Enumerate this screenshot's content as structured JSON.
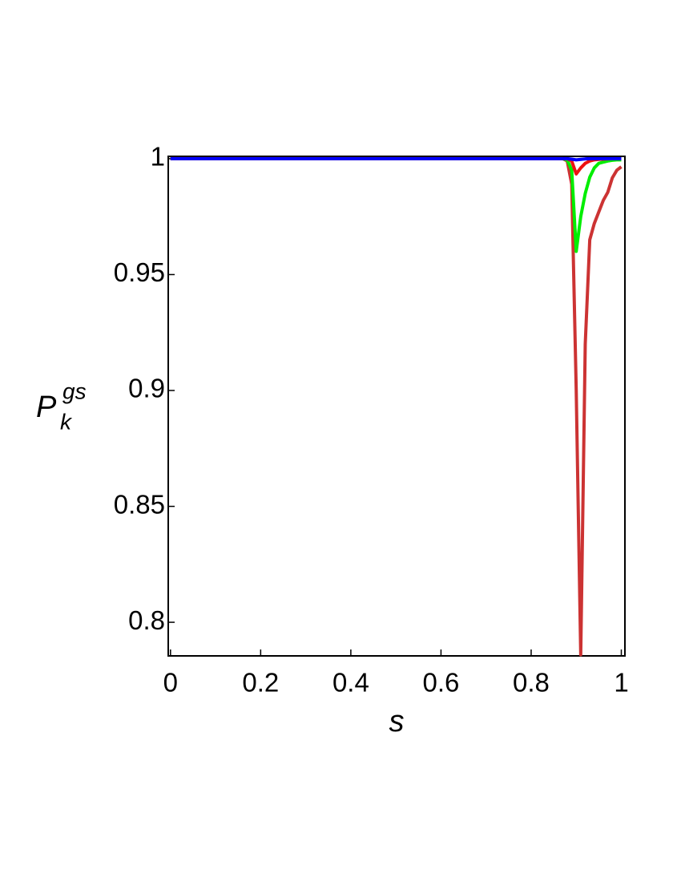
{
  "chart_data": {
    "type": "line",
    "x_label": "s",
    "y_label": {
      "base": "P",
      "sub": "k",
      "sup": "gs"
    },
    "x": [
      0,
      0.5,
      0.85,
      0.87,
      0.88,
      0.89,
      0.9,
      0.91,
      0.92,
      0.93,
      0.94,
      0.95,
      0.96,
      0.97,
      0.98,
      0.99,
      1
    ],
    "series": [
      {
        "color": "#cc3333",
        "values": [
          1,
          1,
          1,
          1,
          0.999,
          0.989,
          0.9,
          0.786,
          0.92,
          0.965,
          0.972,
          0.977,
          0.982,
          0.9855,
          0.9917,
          0.995,
          0.9965
        ]
      },
      {
        "color": "#00ee00",
        "values": [
          1,
          1,
          1,
          1,
          0.9995,
          0.995,
          0.96,
          0.975,
          0.985,
          0.992,
          0.996,
          0.998,
          0.9985,
          0.999,
          0.9993,
          0.9995,
          0.9995
        ]
      },
      {
        "color": "#ee1111",
        "values": [
          1,
          1,
          1,
          1,
          1,
          0.999,
          0.9934,
          0.996,
          0.998,
          0.999,
          0.9995,
          0.9997,
          0.9998,
          0.9999,
          1,
          1,
          1
        ]
      },
      {
        "color": "#0000ff",
        "values": [
          1,
          1,
          1,
          1,
          1,
          0.9998,
          0.9995,
          0.9997,
          0.9999,
          1,
          1,
          1,
          1,
          1,
          1,
          1,
          1
        ]
      }
    ],
    "xlim": [
      -0.005,
      1.008
    ],
    "ylim": [
      0.7855,
      1.001
    ],
    "xticks": [
      0,
      0.2,
      0.4,
      0.6,
      0.8,
      1
    ],
    "yticks": [
      0.8,
      0.85,
      0.9,
      0.95,
      1
    ]
  }
}
